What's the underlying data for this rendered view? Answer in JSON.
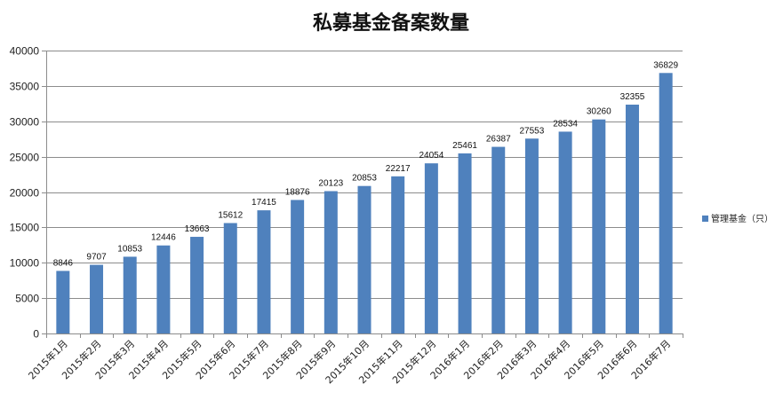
{
  "chart_data": {
    "type": "bar",
    "title": "私募基金备案数量",
    "categories": [
      "2015年1月",
      "2015年2月",
      "2015年3月",
      "2015年4月",
      "2015年5月",
      "2015年6月",
      "2015年7月",
      "2015年8月",
      "2015年9月",
      "2015年10月",
      "2015年11月",
      "2015年12月",
      "2016年1月",
      "2016年2月",
      "2016年3月",
      "2016年4月",
      "2016年5月",
      "2016年6月",
      "2016年7月"
    ],
    "series": [
      {
        "name": "管理基金（只）",
        "values": [
          8846,
          9707,
          10853,
          12446,
          13663,
          15612,
          17415,
          18876,
          20123,
          20853,
          22217,
          24054,
          25461,
          26387,
          27553,
          28534,
          30260,
          32355,
          36829
        ]
      }
    ],
    "ylim": [
      0,
      40000
    ],
    "yticks": [
      0,
      5000,
      10000,
      15000,
      20000,
      25000,
      30000,
      35000,
      40000
    ],
    "grid": true,
    "legend": "right",
    "bar_color": "#4f81bd",
    "xlabel": "",
    "ylabel": ""
  }
}
